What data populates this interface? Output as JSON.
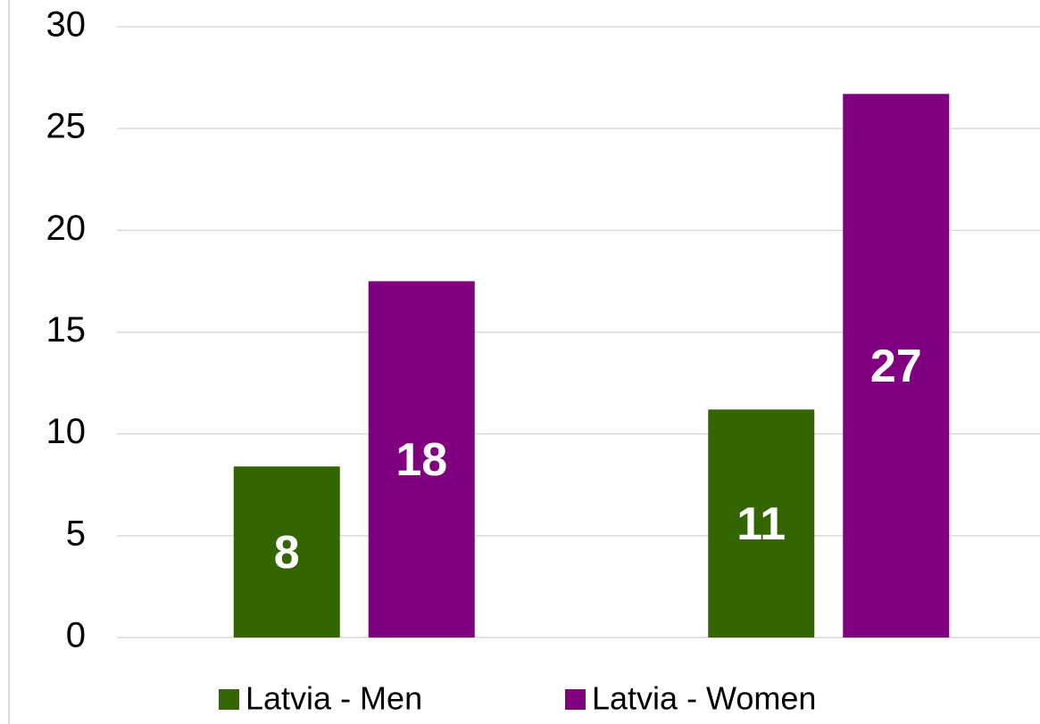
{
  "chart_data": {
    "type": "bar",
    "categories": [
      null,
      null
    ],
    "series": [
      {
        "name": "Latvia - Men",
        "color": "#336600",
        "values": [
          8.4,
          11.2
        ],
        "value_labels": [
          "8",
          "11"
        ]
      },
      {
        "name": "Latvia - Women",
        "color": "#800080",
        "values": [
          17.5,
          26.7
        ],
        "value_labels": [
          "18",
          "27"
        ]
      }
    ],
    "ylim": [
      0,
      30
    ],
    "yticks": [
      0,
      5,
      10,
      15,
      20,
      25,
      30
    ],
    "grid": true,
    "legend": "bottom"
  }
}
